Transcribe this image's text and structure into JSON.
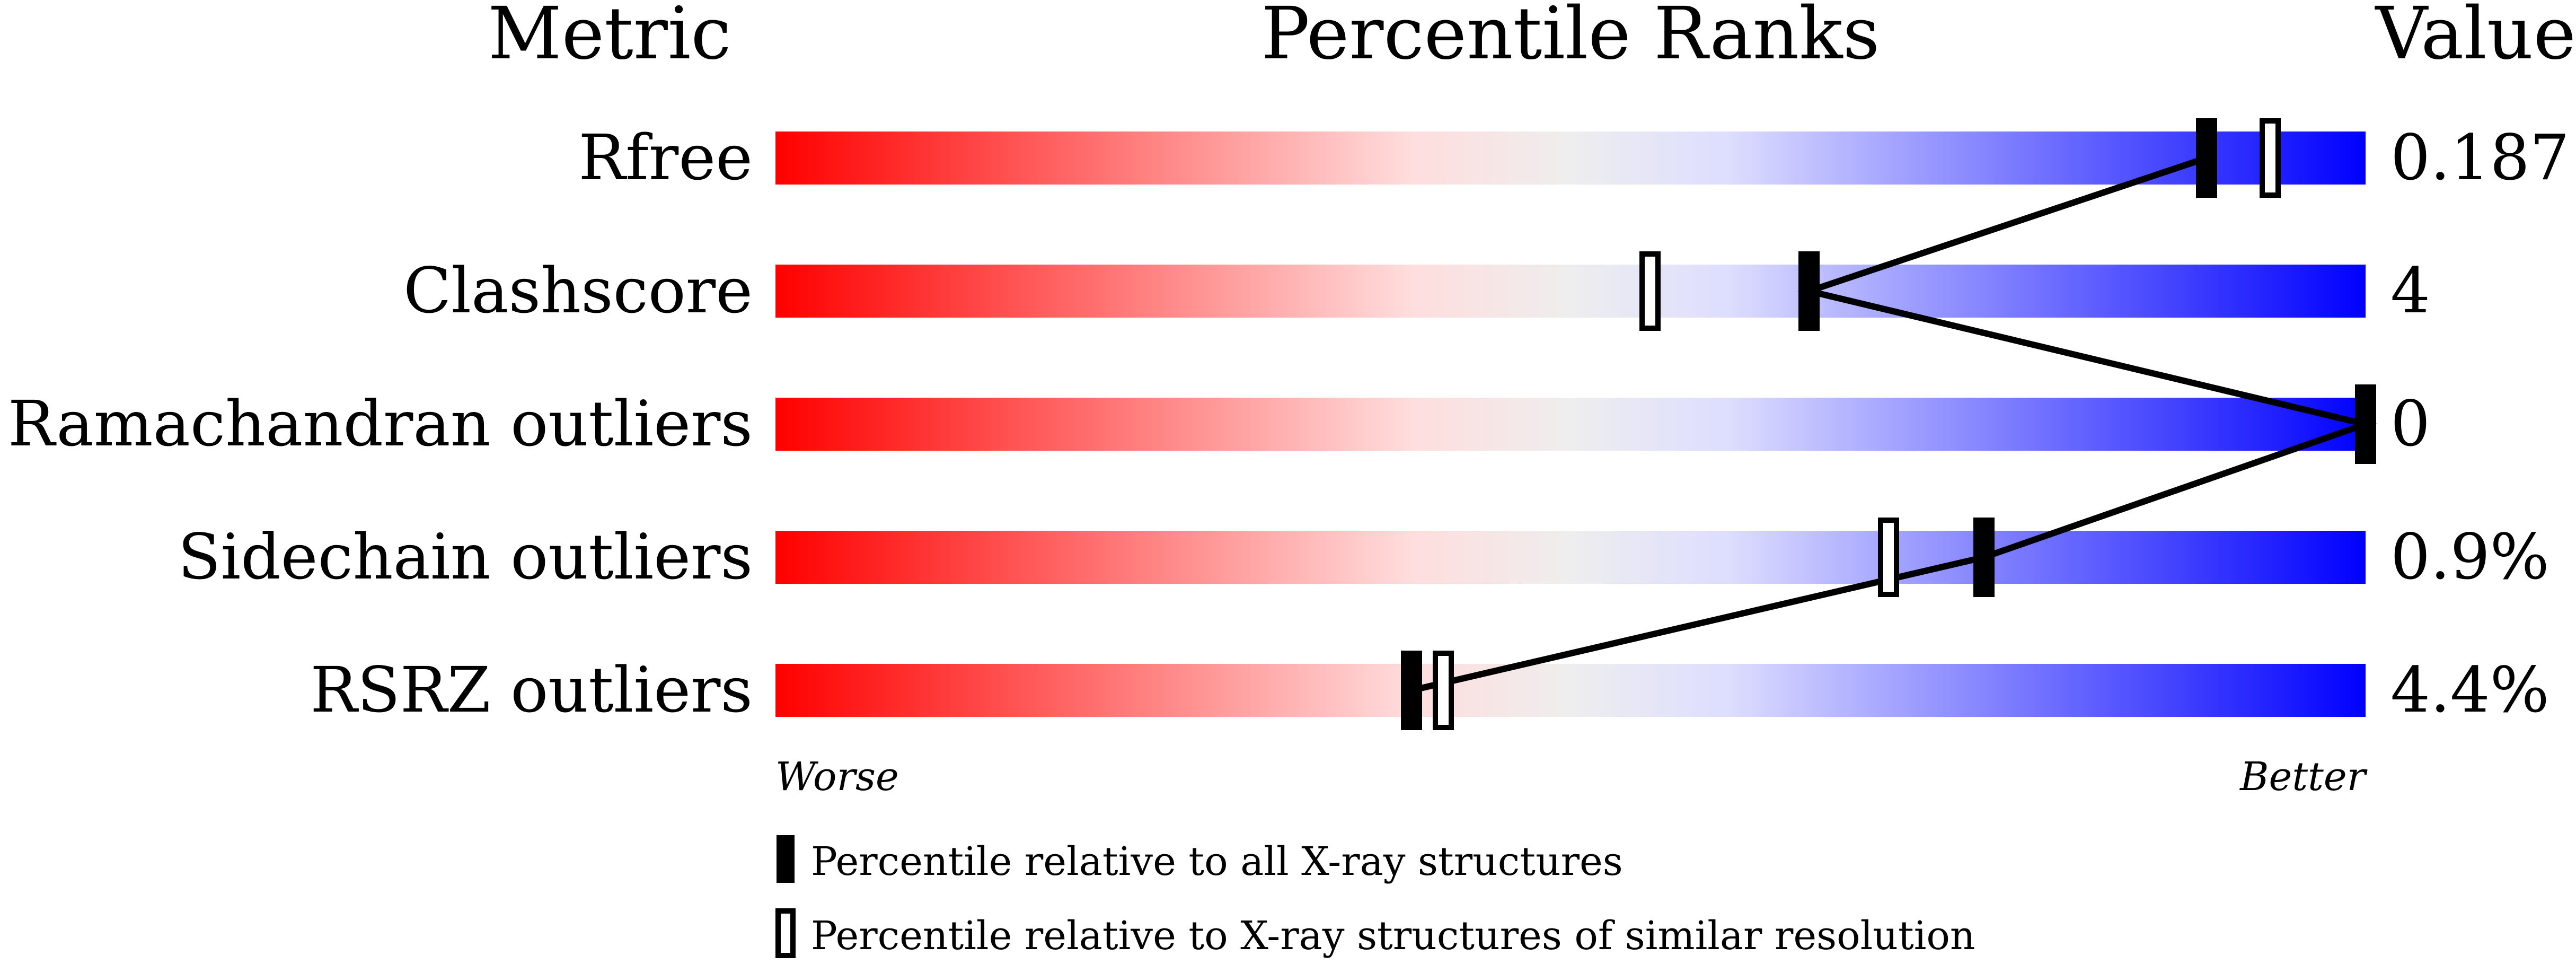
{
  "chart_data": {
    "type": "percentile-slider",
    "headers": {
      "metric": "Metric",
      "ranks": "Percentile Ranks",
      "value": "Value"
    },
    "axis": {
      "left": "Worse",
      "right": "Better",
      "range": [
        0,
        100
      ]
    },
    "gradient_colors": [
      "#ff0000",
      "#ffdddd",
      "#eeeeee",
      "#ddddff",
      "#0000ff"
    ],
    "rows": [
      {
        "metric": "Rfree",
        "value": "0.187",
        "percentile_all": 90,
        "percentile_similar": 94
      },
      {
        "metric": "Clashscore",
        "value": "4",
        "percentile_all": 65,
        "percentile_similar": 55
      },
      {
        "metric": "Ramachandran outliers",
        "value": "0",
        "percentile_all": 100,
        "percentile_similar": null
      },
      {
        "metric": "Sidechain outliers",
        "value": "0.9%",
        "percentile_all": 76,
        "percentile_similar": 70
      },
      {
        "metric": "RSRZ outliers",
        "value": "4.4%",
        "percentile_all": 40,
        "percentile_similar": 42
      }
    ],
    "legend": [
      {
        "marker": "filled",
        "label": "Percentile relative to all X-ray structures"
      },
      {
        "marker": "open",
        "label": "Percentile relative to X-ray structures of similar resolution"
      }
    ]
  }
}
